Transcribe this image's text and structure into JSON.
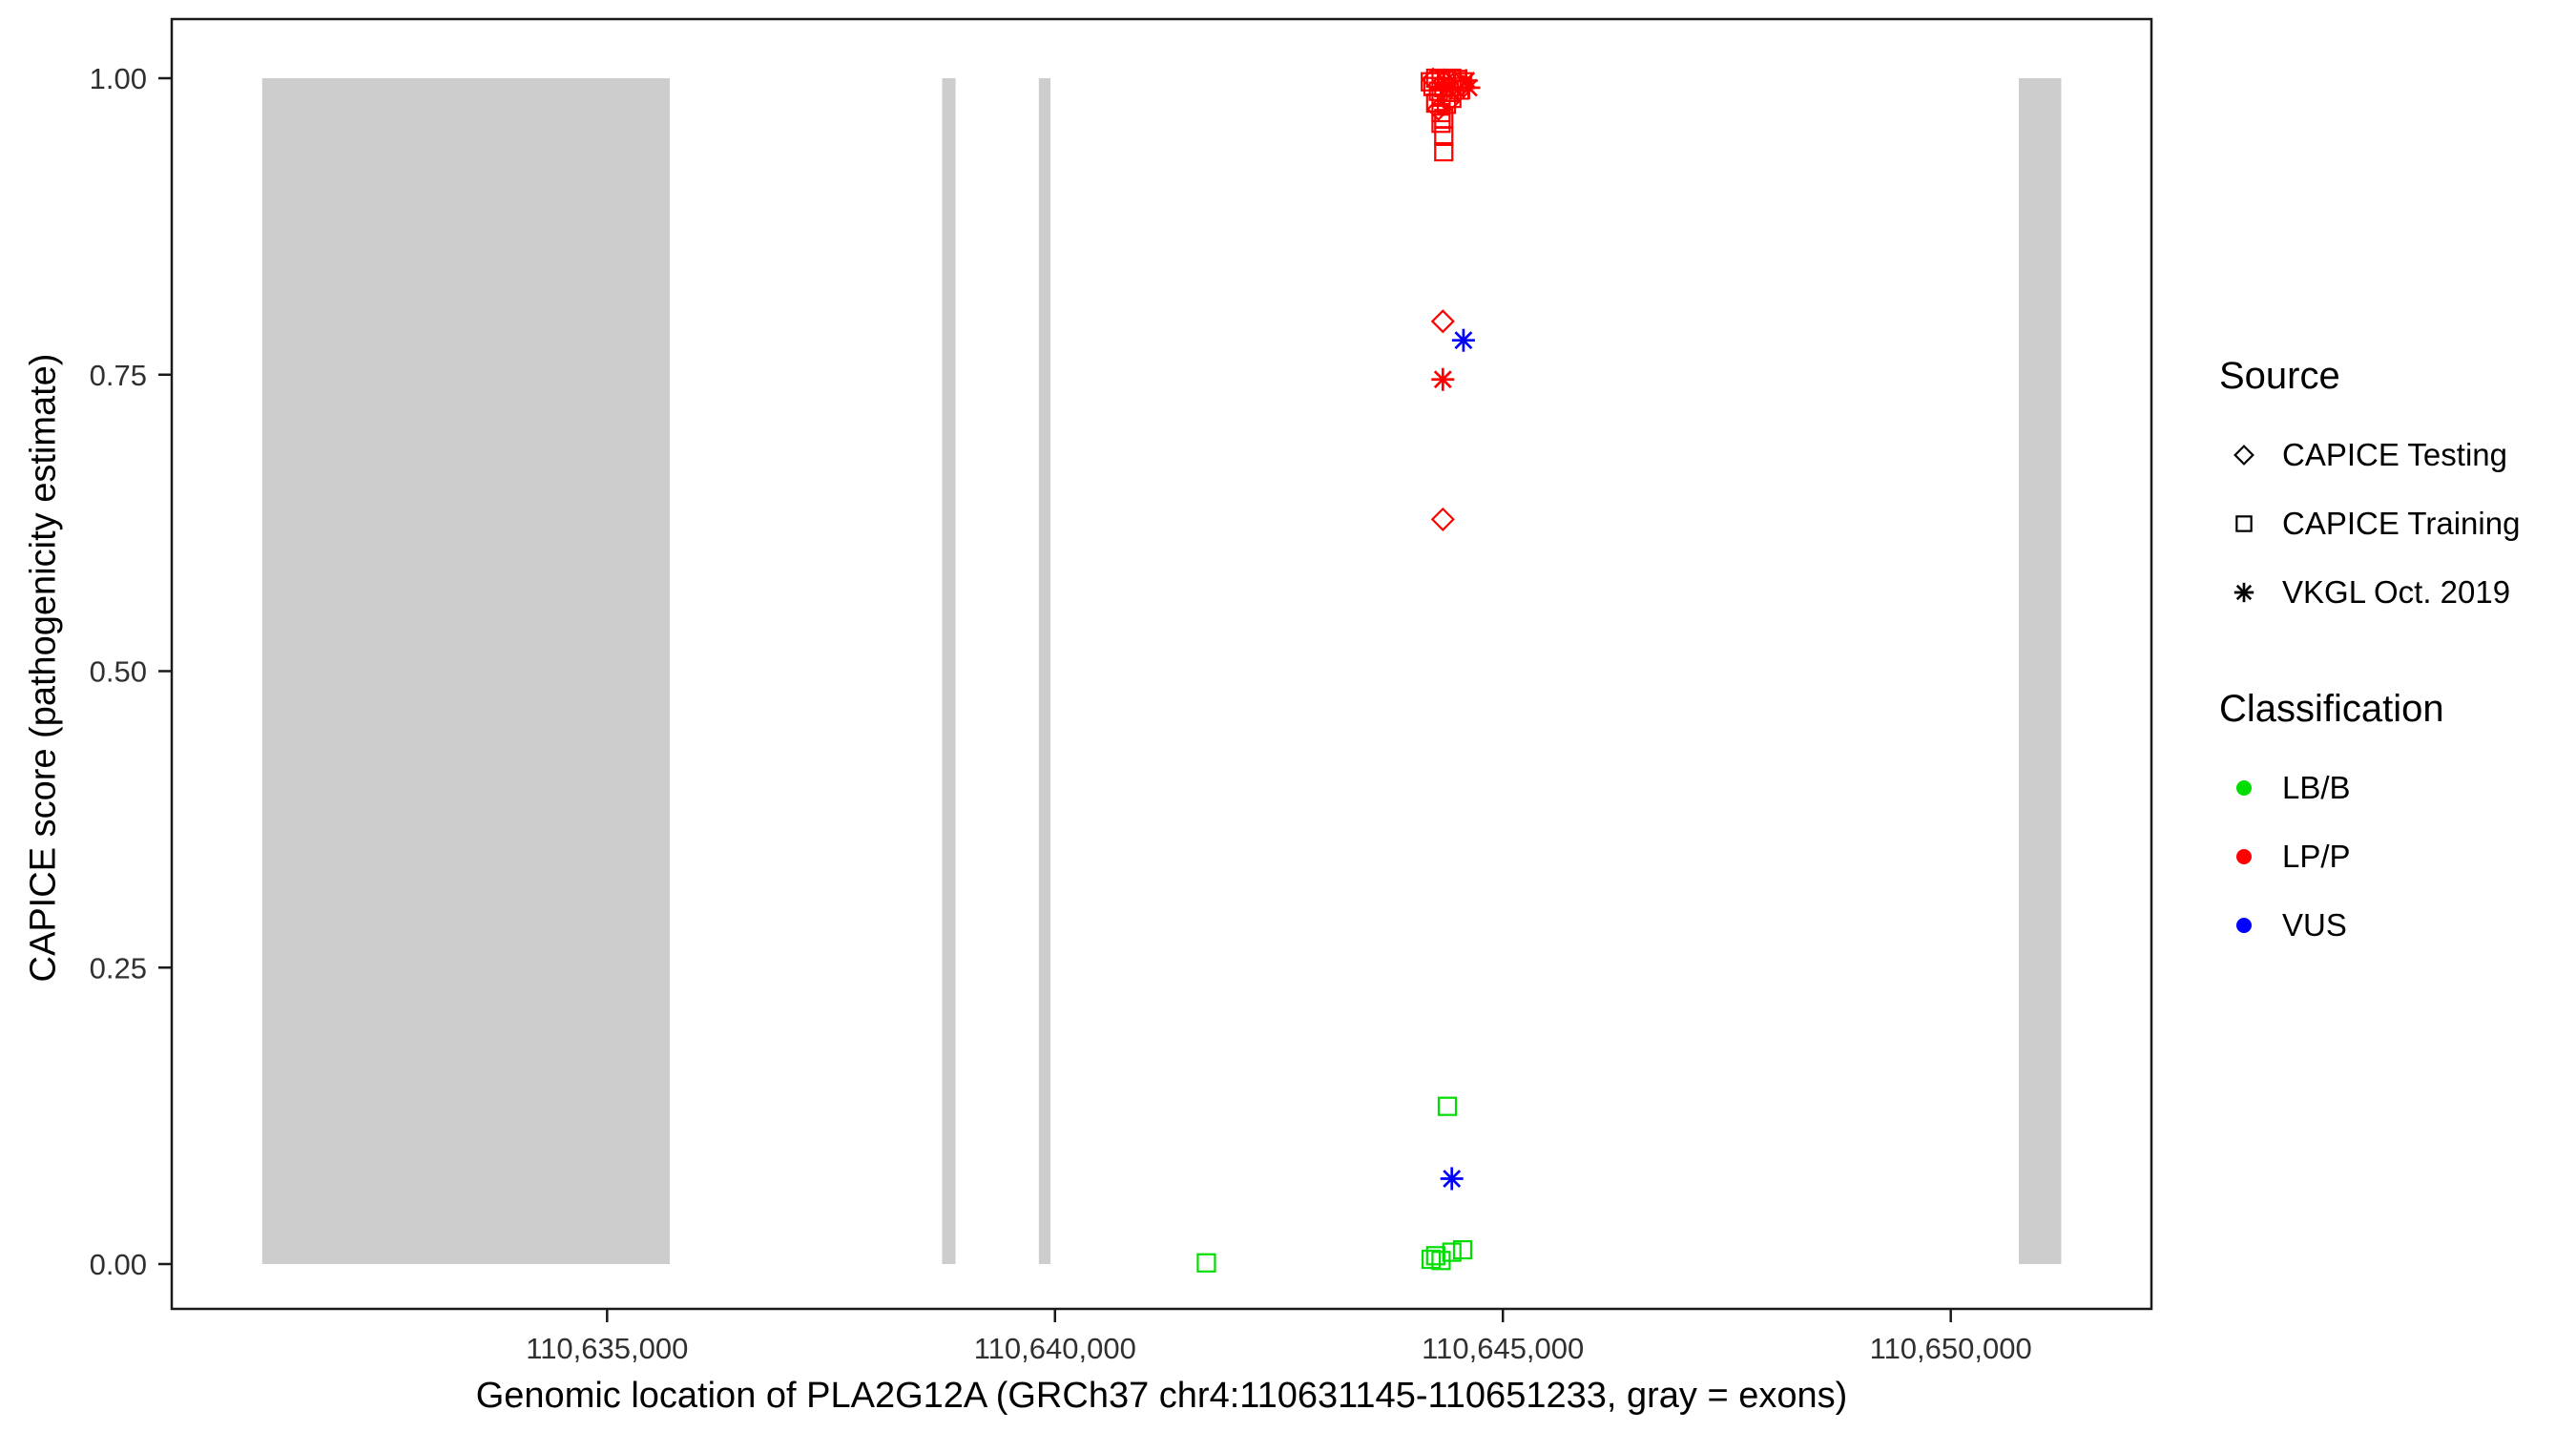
{
  "colors": {
    "background": "#FFFFFF",
    "exon": "#CDCDCD",
    "axis": "#1A1A1A",
    "tick_text": "#303030",
    "legend_symbol": "#000000",
    "classification": {
      "LBB": "#00DD00",
      "LPP": "#FF0000",
      "VUS": "#0000FF"
    }
  },
  "legend": {
    "source": {
      "title": "Source",
      "items": [
        {
          "key": "testing",
          "label": "CAPICE Testing",
          "shape": "diamond"
        },
        {
          "key": "training",
          "label": "CAPICE Training",
          "shape": "square"
        },
        {
          "key": "vkgl",
          "label": "VKGL Oct. 2019",
          "shape": "asterisk"
        }
      ]
    },
    "classification": {
      "title": "Classification",
      "items": [
        {
          "key": "LBB",
          "label": "LB/B",
          "color": "#00DD00"
        },
        {
          "key": "LPP",
          "label": "LP/P",
          "color": "#FF0000"
        },
        {
          "key": "VUS",
          "label": "VUS",
          "color": "#0000FF"
        }
      ]
    }
  },
  "chart_data": {
    "type": "scatter",
    "title": "",
    "xlabel": "Genomic location of PLA2G12A (GRCh37 chr4:110631145-110651233, gray = exons)",
    "ylabel": "CAPICE score (pathogenicity estimate)",
    "xlim": [
      110630140,
      110652240
    ],
    "ylim": [
      0,
      1
    ],
    "grid": false,
    "legend_position": "right",
    "x_ticks": [
      {
        "value": 110635000,
        "label": "110,635,000"
      },
      {
        "value": 110640000,
        "label": "110,640,000"
      },
      {
        "value": 110645000,
        "label": "110,645,000"
      },
      {
        "value": 110650000,
        "label": "110,650,000"
      }
    ],
    "y_ticks": [
      {
        "value": 0,
        "label": "0.00"
      },
      {
        "value": 0.25,
        "label": "0.25"
      },
      {
        "value": 0.5,
        "label": "0.50"
      },
      {
        "value": 0.75,
        "label": "0.75"
      },
      {
        "value": 1,
        "label": "1.00"
      }
    ],
    "exons": [
      [
        110631150,
        110635700
      ],
      [
        110638740,
        110638890
      ],
      [
        110639820,
        110639950
      ],
      [
        110650760,
        110651233
      ]
    ],
    "points": [
      {
        "x": 110644190,
        "y": 0.997,
        "source": "training",
        "classification": "LPP"
      },
      {
        "x": 110644250,
        "y": 1.0,
        "source": "training",
        "classification": "LPP"
      },
      {
        "x": 110644310,
        "y": 0.999,
        "source": "training",
        "classification": "LPP"
      },
      {
        "x": 110644370,
        "y": 0.998,
        "source": "training",
        "classification": "LPP"
      },
      {
        "x": 110644430,
        "y": 1.0,
        "source": "training",
        "classification": "LPP"
      },
      {
        "x": 110644490,
        "y": 0.999,
        "source": "training",
        "classification": "LPP"
      },
      {
        "x": 110644550,
        "y": 0.997,
        "source": "training",
        "classification": "LPP"
      },
      {
        "x": 110644220,
        "y": 0.993,
        "source": "training",
        "classification": "LPP"
      },
      {
        "x": 110644340,
        "y": 0.992,
        "source": "training",
        "classification": "LPP"
      },
      {
        "x": 110644460,
        "y": 0.993,
        "source": "training",
        "classification": "LPP"
      },
      {
        "x": 110644280,
        "y": 0.989,
        "source": "training",
        "classification": "LPP"
      },
      {
        "x": 110644400,
        "y": 0.988,
        "source": "training",
        "classification": "LPP"
      },
      {
        "x": 110644520,
        "y": 0.99,
        "source": "training",
        "classification": "LPP"
      },
      {
        "x": 110644310,
        "y": 0.984,
        "source": "training",
        "classification": "LPP"
      },
      {
        "x": 110644430,
        "y": 0.983,
        "source": "training",
        "classification": "LPP"
      },
      {
        "x": 110644250,
        "y": 0.979,
        "source": "training",
        "classification": "LPP"
      },
      {
        "x": 110644370,
        "y": 0.978,
        "source": "training",
        "classification": "LPP"
      },
      {
        "x": 110644310,
        "y": 0.971,
        "source": "training",
        "classification": "LPP"
      },
      {
        "x": 110644340,
        "y": 0.966,
        "source": "training",
        "classification": "LPP"
      },
      {
        "x": 110644310,
        "y": 0.962,
        "source": "training",
        "classification": "LPP"
      },
      {
        "x": 110644340,
        "y": 0.951,
        "source": "training",
        "classification": "LPP"
      },
      {
        "x": 110644340,
        "y": 0.938,
        "source": "training",
        "classification": "LPP"
      },
      {
        "x": 110644220,
        "y": 0.999,
        "source": "testing",
        "classification": "LPP"
      },
      {
        "x": 110644340,
        "y": 0.997,
        "source": "testing",
        "classification": "LPP"
      },
      {
        "x": 110644460,
        "y": 0.996,
        "source": "testing",
        "classification": "LPP"
      },
      {
        "x": 110644560,
        "y": 0.993,
        "source": "testing",
        "classification": "LPP"
      },
      {
        "x": 110644400,
        "y": 0.981,
        "source": "testing",
        "classification": "LPP"
      },
      {
        "x": 110644280,
        "y": 0.974,
        "source": "testing",
        "classification": "LPP"
      },
      {
        "x": 110644590,
        "y": 0.998,
        "source": "vkgl",
        "classification": "LPP"
      },
      {
        "x": 110644620,
        "y": 0.992,
        "source": "vkgl",
        "classification": "LPP"
      },
      {
        "x": 110644330,
        "y": 0.795,
        "source": "testing",
        "classification": "LPP"
      },
      {
        "x": 110644560,
        "y": 0.779,
        "source": "vkgl",
        "classification": "VUS"
      },
      {
        "x": 110644330,
        "y": 0.746,
        "source": "vkgl",
        "classification": "LPP"
      },
      {
        "x": 110644330,
        "y": 0.628,
        "source": "testing",
        "classification": "LPP"
      },
      {
        "x": 110644380,
        "y": 0.133,
        "source": "training",
        "classification": "LBB"
      },
      {
        "x": 110644430,
        "y": 0.072,
        "source": "vkgl",
        "classification": "VUS"
      },
      {
        "x": 110641690,
        "y": 0.001,
        "source": "training",
        "classification": "LBB"
      },
      {
        "x": 110644200,
        "y": 0.004,
        "source": "training",
        "classification": "LBB"
      },
      {
        "x": 110644250,
        "y": 0.007,
        "source": "training",
        "classification": "LBB"
      },
      {
        "x": 110644310,
        "y": 0.003,
        "source": "training",
        "classification": "LBB"
      },
      {
        "x": 110644430,
        "y": 0.01,
        "source": "training",
        "classification": "LBB"
      },
      {
        "x": 110644550,
        "y": 0.012,
        "source": "training",
        "classification": "LBB"
      }
    ]
  }
}
